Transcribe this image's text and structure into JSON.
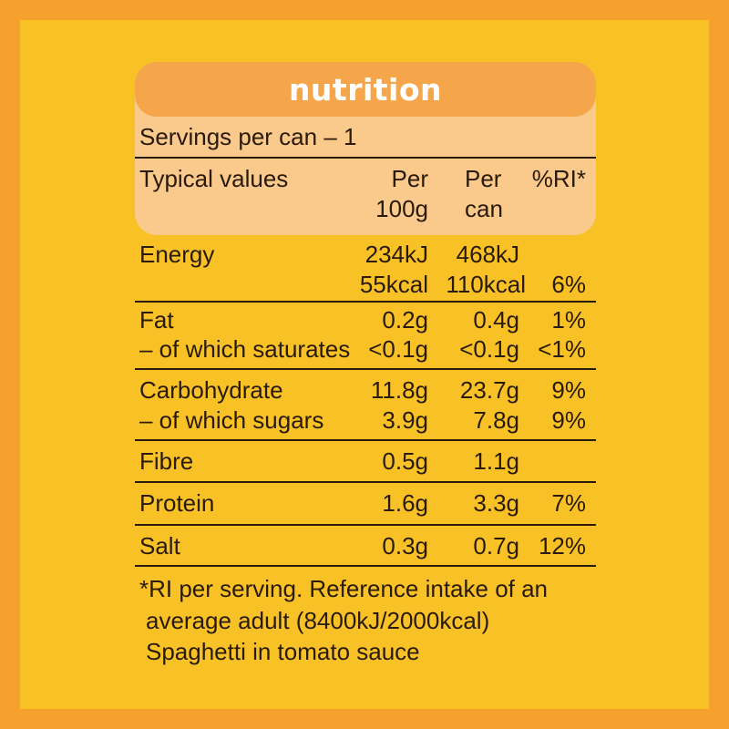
{
  "title": "nutrition",
  "servings": "Servings per can – 1",
  "header": {
    "typical": "Typical values",
    "per100_l1": "Per",
    "per100_l2": "100g",
    "percan_l1": "Per",
    "percan_l2": "can",
    "ri": "%RI*"
  },
  "rows": {
    "energy": {
      "label": "Energy",
      "kj100": "234kJ",
      "kjcan": "468kJ",
      "kcal100": "55kcal",
      "kcalcan": "110kcal",
      "ri": "6%"
    },
    "fat": {
      "label": "Fat",
      "v100": "0.2g",
      "vcan": "0.4g",
      "ri": "1%"
    },
    "sat": {
      "label": "– of which saturates",
      "v100": "<0.1g",
      "vcan": "<0.1g",
      "ri": "<1%"
    },
    "carb": {
      "label": "Carbohydrate",
      "v100": "11.8g",
      "vcan": "23.7g",
      "ri": "9%"
    },
    "sugars": {
      "label": "– of which sugars",
      "v100": "3.9g",
      "vcan": "7.8g",
      "ri": "9%"
    },
    "fibre": {
      "label": "Fibre",
      "v100": "0.5g",
      "vcan": "1.1g",
      "ri": ""
    },
    "protein": {
      "label": "Protein",
      "v100": "1.6g",
      "vcan": "3.3g",
      "ri": "7%"
    },
    "salt": {
      "label": "Salt",
      "v100": "0.3g",
      "vcan": "0.7g",
      "ri": "12%"
    }
  },
  "footnote": {
    "line1": "*RI per serving. Reference intake of an",
    "line2": "average adult (8400kJ/2000kcal)",
    "line3": "Spaghetti in tomato sauce"
  }
}
